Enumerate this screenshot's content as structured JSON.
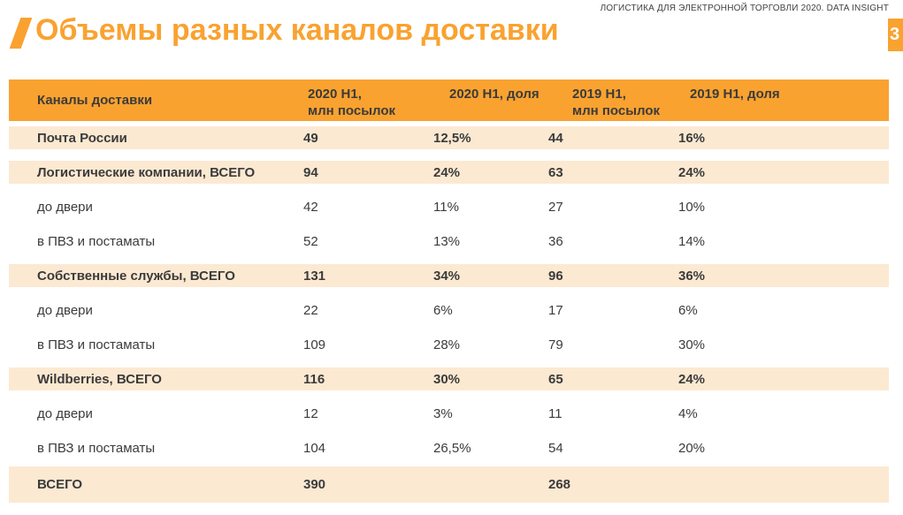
{
  "meta": {
    "report_header": "ЛОГИСТИКА ДЛЯ ЭЛЕКТРОННОЙ ТОРГОВЛИ 2020. DATA INSIGHT",
    "page_number": "3",
    "title": "Объемы разных каналов доставки"
  },
  "colors": {
    "accent_orange": "#f9a230",
    "row_highlight": "#fce9d2",
    "text_dark": "#3b3b3b"
  },
  "table": {
    "columns": [
      {
        "label": "Каналы доставки"
      },
      {
        "label": "2020 H1,\nмлн посылок"
      },
      {
        "label": "2020 H1, доля"
      },
      {
        "label": "2019 H1,\nмлн посылок"
      },
      {
        "label": "2019 H1, доля"
      }
    ],
    "rows": [
      {
        "label": "Почта России",
        "values": [
          "49",
          "12,5%",
          "44",
          "16%"
        ],
        "emphasis": true
      },
      {
        "label": "Логистические компании, ВСЕГО",
        "values": [
          "94",
          "24%",
          "63",
          "24%"
        ],
        "emphasis": true
      },
      {
        "label": "до двери",
        "values": [
          "42",
          "11%",
          "27",
          "10%"
        ],
        "emphasis": false
      },
      {
        "label": "в ПВЗ и постаматы",
        "values": [
          "52",
          "13%",
          "36",
          "14%"
        ],
        "emphasis": false
      },
      {
        "label": "Собственные службы, ВСЕГО",
        "values": [
          "131",
          "34%",
          "96",
          "36%"
        ],
        "emphasis": true
      },
      {
        "label": "до двери",
        "values": [
          "22",
          "6%",
          "17",
          "6%"
        ],
        "emphasis": false
      },
      {
        "label": "в ПВЗ и постаматы",
        "values": [
          "109",
          "28%",
          "79",
          "30%"
        ],
        "emphasis": false
      },
      {
        "label": "Wildberries, ВСЕГО",
        "values": [
          "116",
          "30%",
          "65",
          "24%"
        ],
        "emphasis": true
      },
      {
        "label": "до двери",
        "values": [
          "12",
          "3%",
          "11",
          "4%"
        ],
        "emphasis": false
      },
      {
        "label": "в ПВЗ и постаматы",
        "values": [
          "104",
          "26,5%",
          "54",
          "20%"
        ],
        "emphasis": false
      },
      {
        "label": "ВСЕГО",
        "values": [
          "390",
          "",
          "268",
          ""
        ],
        "emphasis": true,
        "total": true
      }
    ]
  }
}
